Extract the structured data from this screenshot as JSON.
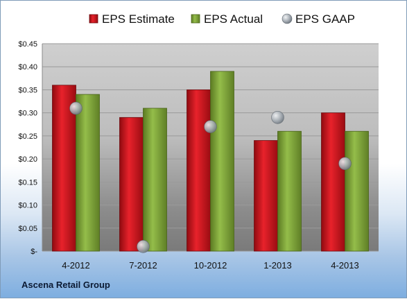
{
  "chart_data": {
    "type": "bar",
    "categories": [
      "4-2012",
      "7-2012",
      "10-2012",
      "1-2013",
      "4-2013"
    ],
    "series": [
      {
        "name": "EPS Estimate",
        "values": [
          0.36,
          0.29,
          0.35,
          0.24,
          0.3
        ],
        "color": "#d0121b"
      },
      {
        "name": "EPS Actual",
        "values": [
          0.34,
          0.31,
          0.39,
          0.26,
          0.26
        ],
        "color": "#7ea23a"
      },
      {
        "name": "EPS GAAP",
        "type": "scatter",
        "values": [
          0.31,
          0.01,
          0.27,
          0.29,
          0.19
        ],
        "color": "#9aa3ab"
      }
    ],
    "y_ticks": [
      "$-",
      "$0.05",
      "$0.10",
      "$0.15",
      "$0.20",
      "$0.25",
      "$0.30",
      "$0.35",
      "$0.40",
      "$0.45"
    ],
    "ylim": [
      0,
      0.45
    ],
    "grid": true,
    "legend": "top"
  },
  "company": "Ascena Retail Group"
}
